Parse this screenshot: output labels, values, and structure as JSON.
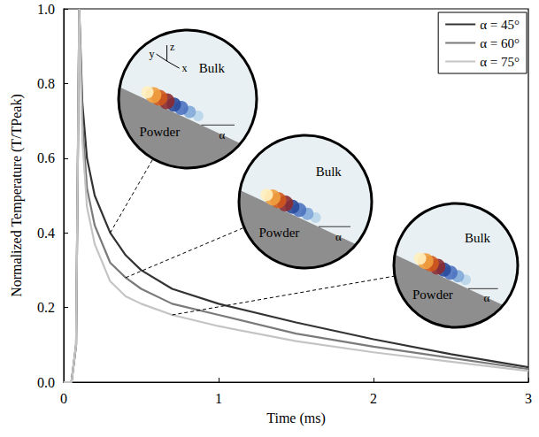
{
  "chart_data": {
    "type": "line",
    "xlabel": "Time (ms)",
    "ylabel": "Normalized Temperature (T/TPeak)",
    "x": [
      0,
      0.05,
      0.08,
      0.1,
      0.12,
      0.15,
      0.2,
      0.3,
      0.4,
      0.5,
      0.7,
      1.0,
      1.5,
      2.0,
      2.5,
      3.0
    ],
    "series": [
      {
        "name": "α = 45°",
        "color": "#333333",
        "values": [
          0,
          0,
          0.1,
          1.0,
          0.75,
          0.6,
          0.5,
          0.4,
          0.34,
          0.3,
          0.25,
          0.21,
          0.16,
          0.115,
          0.075,
          0.04
        ]
      },
      {
        "name": "α = 60°",
        "color": "#7a7a7a",
        "values": [
          0,
          0,
          0.1,
          1.0,
          0.7,
          0.52,
          0.42,
          0.32,
          0.28,
          0.25,
          0.21,
          0.18,
          0.13,
          0.095,
          0.065,
          0.035
        ]
      },
      {
        "name": "α = 75°",
        "color": "#c4c4c4",
        "values": [
          0,
          0,
          0.1,
          1.0,
          0.65,
          0.47,
          0.37,
          0.27,
          0.23,
          0.21,
          0.18,
          0.15,
          0.11,
          0.08,
          0.055,
          0.03
        ]
      }
    ],
    "xlim": [
      0,
      3
    ],
    "ylim": [
      0,
      1
    ],
    "xticks": [
      0,
      1,
      2,
      3
    ],
    "yticks": [
      {
        "value": 0,
        "label": "0.0"
      },
      {
        "value": 0.2,
        "label": "0.2"
      },
      {
        "value": 0.4,
        "label": "0.4"
      },
      {
        "value": 0.6,
        "label": "0.6"
      },
      {
        "value": 0.8,
        "label": "0.8"
      },
      {
        "value": 1,
        "label": "1.0"
      }
    ],
    "legend": "upper right",
    "grid": false,
    "insets": [
      {
        "series": "α = 45°",
        "axes": [
          "x",
          "y",
          "z"
        ],
        "bulk": "Bulk",
        "powder": "Powder",
        "angle": "α"
      },
      {
        "series": "α = 60°",
        "bulk": "Bulk",
        "powder": "Powder",
        "angle": "α"
      },
      {
        "series": "α = 75°",
        "bulk": "Bulk",
        "powder": "Powder",
        "angle": "α"
      }
    ]
  }
}
